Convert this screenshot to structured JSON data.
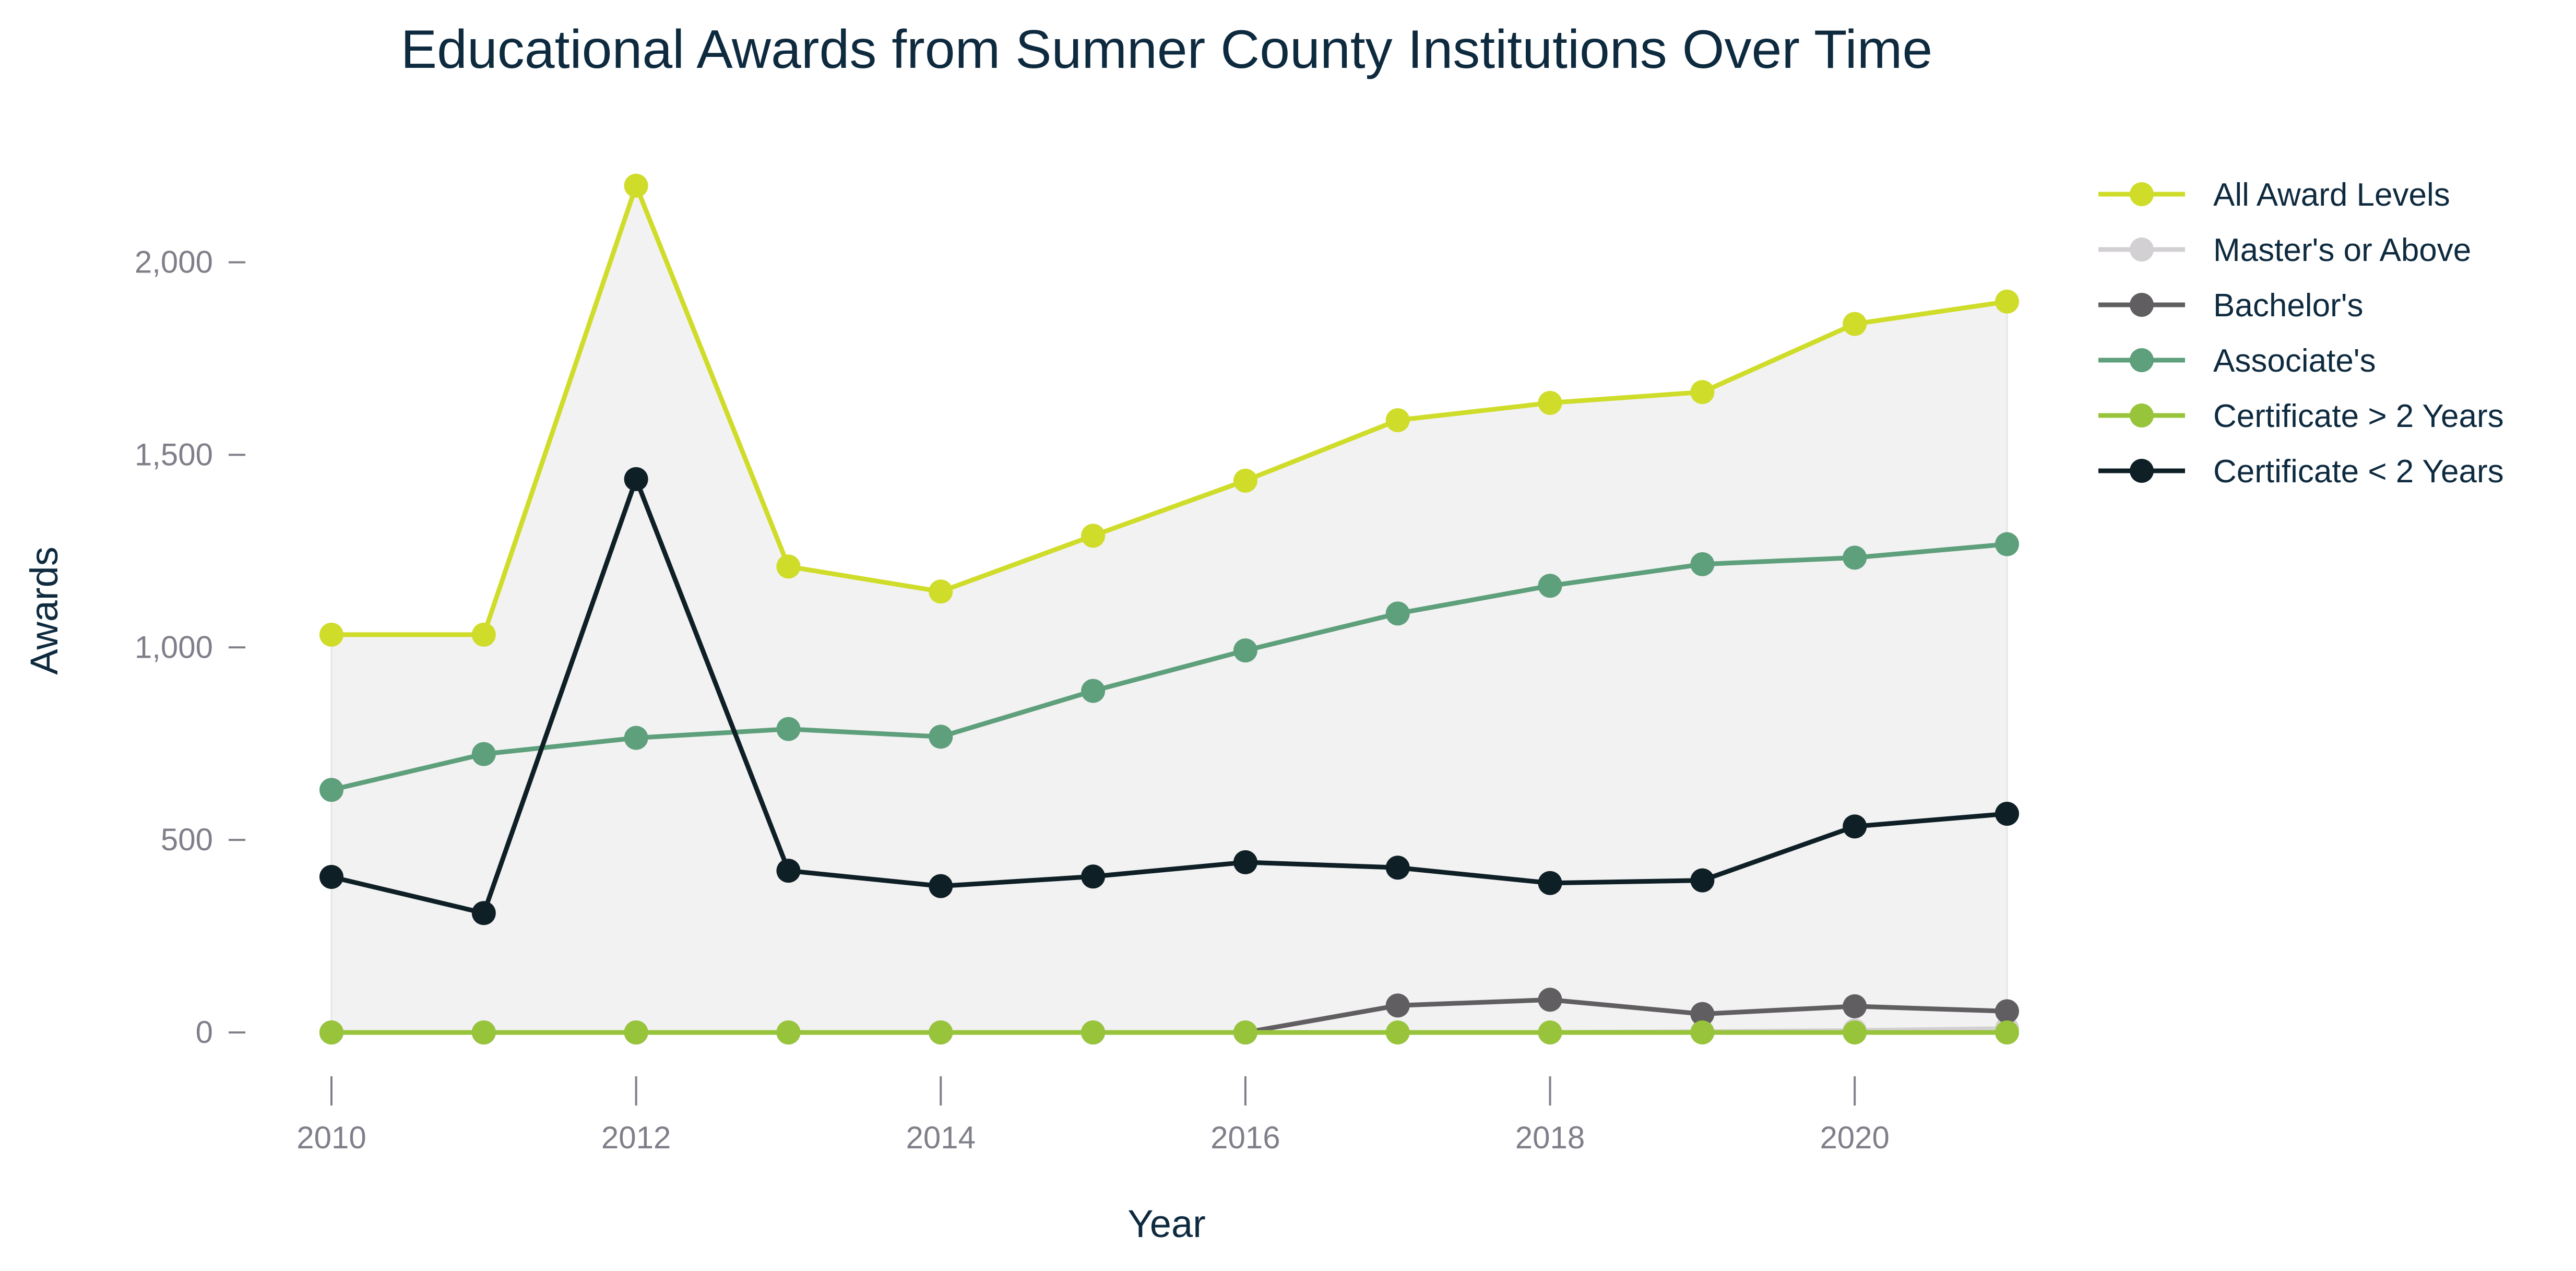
{
  "chart_data": {
    "type": "line",
    "title": "Educational Awards from Sumner County Institutions Over Time",
    "xlabel": "Year",
    "ylabel": "Awards",
    "x": [
      2010,
      2011,
      2012,
      2013,
      2014,
      2015,
      2016,
      2017,
      2018,
      2019,
      2020,
      2021
    ],
    "xticks": [
      "2010",
      "2012",
      "2014",
      "2016",
      "2018",
      "2020"
    ],
    "xlim": [
      2010,
      2021
    ],
    "ylim": [
      0,
      2200
    ],
    "yticks": [
      0,
      500,
      1000,
      1500,
      2000
    ],
    "ytick_labels": [
      "0",
      "500",
      "1,000",
      "1,500",
      "2,000"
    ],
    "grid": false,
    "legend_position": "right",
    "area_fill": {
      "series": "All Award Levels",
      "color": "#f2f2f2"
    },
    "series": [
      {
        "name": "All Award Levels",
        "color": "#cfdc2a",
        "values": [
          1033,
          1033,
          2199,
          1210,
          1145,
          1290,
          1433,
          1590,
          1635,
          1663,
          1840,
          1898
        ]
      },
      {
        "name": "Master's or Above",
        "color": "#d3d0d3",
        "values": [
          0,
          0,
          0,
          0,
          0,
          0,
          0,
          0,
          0,
          2,
          5,
          10
        ]
      },
      {
        "name": "Bachelor's",
        "color": "#615e61",
        "values": [
          0,
          0,
          0,
          0,
          0,
          0,
          0,
          70,
          85,
          48,
          68,
          55
        ]
      },
      {
        "name": "Associate's",
        "color": "#5e9f7c",
        "values": [
          630,
          723,
          765,
          788,
          768,
          887,
          992,
          1088,
          1160,
          1216,
          1233,
          1268
        ]
      },
      {
        "name": "Certificate > 2 Years",
        "color": "#98c43b",
        "values": [
          0,
          0,
          0,
          0,
          0,
          0,
          0,
          0,
          0,
          0,
          0,
          0
        ]
      },
      {
        "name": "Certificate < 2 Years",
        "color": "#0e1f26",
        "values": [
          404,
          310,
          1437,
          420,
          380,
          405,
          442,
          428,
          388,
          395,
          535,
          568
        ]
      }
    ]
  }
}
